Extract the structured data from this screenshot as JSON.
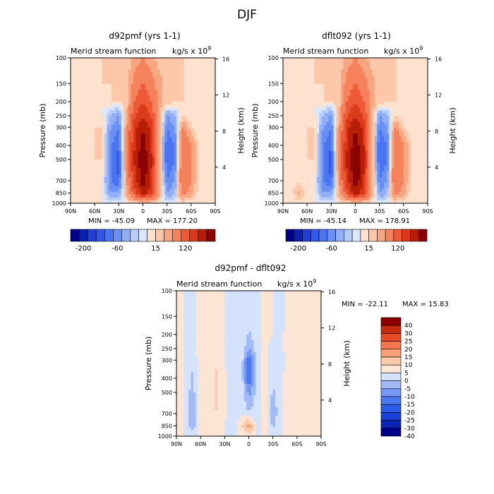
{
  "figure_title": "DJF",
  "palettes": {
    "panel": [
      "#00008b",
      "#0c1fb3",
      "#1f3fd6",
      "#3158ea",
      "#4a74f2",
      "#6b90f4",
      "#91aef7",
      "#b8ccfa",
      "#dbe7fd",
      "#fde2cf",
      "#fcc8a9",
      "#f8a681",
      "#f5825c",
      "#ee5a37",
      "#db3a1a",
      "#b61e06",
      "#8a0303"
    ],
    "diff": [
      "#00008b",
      "#0b23b5",
      "#1b40d8",
      "#2d5bea",
      "#4d78f2",
      "#7597f5",
      "#a2baf8",
      "#d4e2fc",
      "#fde5d5",
      "#fbc8a8",
      "#f8a07a",
      "#f3764f",
      "#e64a28",
      "#c62a0f",
      "#8b0000"
    ]
  },
  "chart_data": [
    {
      "type": "heatmap",
      "title": "d92pmf (yrs 1-1)",
      "subtitle_left": "Merid stream function",
      "units_label": "kg/s x 10",
      "units_exponent": "9",
      "xlabel": "",
      "ylabel": "Pressure (mb)",
      "ylabel_right": "Height (km)",
      "x_ticks": [
        "90N",
        "60N",
        "30N",
        "0",
        "30S",
        "60S",
        "90S"
      ],
      "y_ticks": [
        "100",
        "150",
        "200",
        "250",
        "300",
        "400",
        "500",
        "700",
        "850",
        "1000"
      ],
      "y_ticks_right": [
        "16",
        "12",
        "8",
        "4"
      ],
      "stats": {
        "min_label": "MIN = -45.09",
        "max_label": "MAX = 177.20"
      },
      "colorbar_labels": [
        "-200",
        "-60",
        "15",
        "120"
      ],
      "data": {
        "lat": [
          80,
          70,
          60,
          50,
          40,
          30,
          20,
          10,
          0,
          -10,
          -20,
          -30,
          -40,
          -50,
          -60,
          -70,
          -80
        ],
        "p": [
          100,
          150,
          200,
          250,
          300,
          400,
          500,
          700,
          850,
          1000
        ],
        "values": [
          [
            0,
            0,
            0,
            5,
            5,
            5,
            5,
            20,
            30,
            20,
            10,
            5,
            5,
            5,
            0,
            0,
            0
          ],
          [
            0,
            0,
            0,
            5,
            5,
            5,
            10,
            40,
            60,
            40,
            20,
            10,
            5,
            5,
            0,
            0,
            0
          ],
          [
            0,
            0,
            0,
            0,
            5,
            5,
            10,
            60,
            90,
            60,
            20,
            10,
            5,
            5,
            0,
            0,
            0
          ],
          [
            0,
            0,
            0,
            0,
            -10,
            -20,
            15,
            90,
            120,
            90,
            20,
            -20,
            -10,
            5,
            0,
            0,
            0
          ],
          [
            0,
            0,
            5,
            5,
            -20,
            -30,
            30,
            110,
            150,
            110,
            20,
            -30,
            -20,
            30,
            5,
            0,
            0
          ],
          [
            0,
            0,
            5,
            5,
            -30,
            -40,
            40,
            120,
            170,
            120,
            20,
            -40,
            -30,
            60,
            30,
            0,
            0
          ],
          [
            0,
            0,
            5,
            5,
            -30,
            -45,
            40,
            130,
            177,
            130,
            20,
            -40,
            -30,
            60,
            30,
            0,
            0
          ],
          [
            0,
            0,
            0,
            0,
            -30,
            -40,
            30,
            110,
            170,
            120,
            20,
            -30,
            -20,
            60,
            30,
            0,
            0
          ],
          [
            0,
            0,
            0,
            0,
            -20,
            -20,
            20,
            80,
            140,
            100,
            20,
            -20,
            -10,
            40,
            20,
            0,
            0
          ],
          [
            0,
            0,
            0,
            0,
            0,
            0,
            0,
            0,
            0,
            0,
            0,
            0,
            0,
            0,
            0,
            0,
            0
          ]
        ]
      }
    },
    {
      "type": "heatmap",
      "title": "dflt092 (yrs 1-1)",
      "subtitle_left": "Merid stream function",
      "units_label": "kg/s x 10",
      "units_exponent": "9",
      "xlabel": "",
      "ylabel": "Pressure (mb)",
      "ylabel_right": "Height (km)",
      "x_ticks": [
        "90N",
        "60N",
        "30N",
        "0",
        "30S",
        "60S",
        "90S"
      ],
      "y_ticks": [
        "100",
        "150",
        "200",
        "250",
        "300",
        "400",
        "500",
        "700",
        "850",
        "1000"
      ],
      "y_ticks_right": [
        "16",
        "12",
        "8",
        "4"
      ],
      "stats": {
        "min_label": "MIN = -45.14",
        "max_label": "MAX = 178.91"
      },
      "colorbar_labels": [
        "-200",
        "-60",
        "15",
        "120"
      ],
      "data": {
        "lat": [
          80,
          70,
          60,
          50,
          40,
          30,
          20,
          10,
          0,
          -10,
          -20,
          -30,
          -40,
          -50,
          -60,
          -70,
          -80
        ],
        "p": [
          100,
          150,
          200,
          250,
          300,
          400,
          500,
          700,
          850,
          1000
        ],
        "values": [
          [
            0,
            0,
            0,
            5,
            5,
            5,
            5,
            20,
            30,
            20,
            10,
            5,
            5,
            5,
            0,
            0,
            0
          ],
          [
            0,
            0,
            0,
            5,
            5,
            5,
            10,
            40,
            60,
            40,
            20,
            10,
            5,
            5,
            0,
            0,
            0
          ],
          [
            0,
            0,
            0,
            0,
            5,
            5,
            10,
            60,
            90,
            60,
            20,
            10,
            5,
            5,
            0,
            0,
            0
          ],
          [
            0,
            0,
            0,
            0,
            -10,
            -20,
            15,
            90,
            120,
            90,
            20,
            -20,
            -10,
            5,
            0,
            0,
            0
          ],
          [
            0,
            0,
            5,
            5,
            -20,
            -30,
            30,
            110,
            150,
            110,
            20,
            -30,
            -20,
            30,
            5,
            0,
            0
          ],
          [
            0,
            0,
            5,
            5,
            -30,
            -40,
            40,
            120,
            172,
            125,
            20,
            -40,
            -30,
            60,
            30,
            0,
            0
          ],
          [
            0,
            0,
            5,
            5,
            -30,
            -45,
            40,
            132,
            179,
            132,
            20,
            -40,
            -30,
            60,
            30,
            0,
            0
          ],
          [
            0,
            0,
            0,
            0,
            -30,
            -40,
            30,
            112,
            172,
            122,
            20,
            -30,
            -20,
            60,
            30,
            0,
            0
          ],
          [
            0,
            20,
            0,
            0,
            -20,
            -20,
            20,
            80,
            140,
            100,
            20,
            -20,
            -10,
            40,
            20,
            0,
            0
          ],
          [
            0,
            0,
            0,
            0,
            0,
            0,
            0,
            0,
            0,
            0,
            0,
            0,
            0,
            0,
            0,
            0,
            0
          ]
        ]
      }
    },
    {
      "type": "heatmap",
      "title": "d92pmf - dflt092",
      "subtitle_left": "Merid stream function",
      "units_label": "kg/s x 10",
      "units_exponent": "9",
      "xlabel": "",
      "ylabel": "Pressure (mb)",
      "ylabel_right": "Height (km)",
      "x_ticks": [
        "90N",
        "60N",
        "30N",
        "0",
        "30S",
        "60S",
        "90S"
      ],
      "y_ticks": [
        "100",
        "150",
        "200",
        "250",
        "300",
        "400",
        "500",
        "700",
        "850",
        "1000"
      ],
      "y_ticks_right": [
        "16",
        "12",
        "8",
        "4"
      ],
      "stats": {
        "min_label": "MIN = -22.11",
        "max_label": "MAX =  15.83"
      },
      "colorbar_labels": [
        "40",
        "30",
        "25",
        "20",
        "15",
        "10",
        "5",
        "0",
        "-5",
        "-10",
        "-15",
        "-20",
        "-25",
        "-30",
        "-40"
      ],
      "data": {
        "lat": [
          80,
          70,
          60,
          50,
          40,
          30,
          20,
          10,
          0,
          -10,
          -20,
          -30,
          -40,
          -50,
          -60,
          -70,
          -80
        ],
        "p": [
          100,
          150,
          200,
          250,
          300,
          400,
          500,
          700,
          850,
          1000
        ],
        "values": [
          [
            0,
            0,
            0,
            0,
            0,
            0,
            0,
            0,
            0,
            0,
            0,
            0,
            0,
            0,
            0,
            0,
            0
          ],
          [
            0,
            -2,
            2,
            1,
            2,
            0,
            -1,
            0,
            -3,
            -1,
            1,
            0,
            -1,
            1,
            0,
            0,
            0
          ],
          [
            0,
            -2,
            2,
            1,
            2,
            0,
            -1,
            0,
            -6,
            -1,
            1,
            0,
            -1,
            2,
            0,
            0,
            0
          ],
          [
            0,
            -3,
            3,
            2,
            3,
            0,
            -2,
            0,
            -10,
            -2,
            2,
            -2,
            -1,
            2,
            1,
            0,
            0
          ],
          [
            0,
            -4,
            3,
            2,
            4,
            0,
            -2,
            0,
            -20,
            -2,
            2,
            -3,
            -2,
            3,
            1,
            0,
            0
          ],
          [
            0,
            -6,
            4,
            2,
            6,
            1,
            -3,
            0,
            -22,
            -3,
            2,
            -4,
            -2,
            4,
            2,
            0,
            0
          ],
          [
            0,
            -8,
            4,
            2,
            6,
            1,
            -3,
            0,
            -12,
            -3,
            3,
            -6,
            -2,
            4,
            2,
            0,
            0
          ],
          [
            0,
            -10,
            4,
            2,
            5,
            1,
            -4,
            0,
            -4,
            -4,
            3,
            -8,
            -2,
            5,
            2,
            0,
            0
          ],
          [
            0,
            -8,
            3,
            1,
            3,
            0,
            -2,
            2,
            15,
            -2,
            2,
            -6,
            -2,
            4,
            1,
            0,
            0
          ],
          [
            0,
            0,
            0,
            0,
            0,
            0,
            0,
            0,
            0,
            0,
            0,
            0,
            0,
            0,
            0,
            0,
            0
          ]
        ]
      }
    }
  ]
}
